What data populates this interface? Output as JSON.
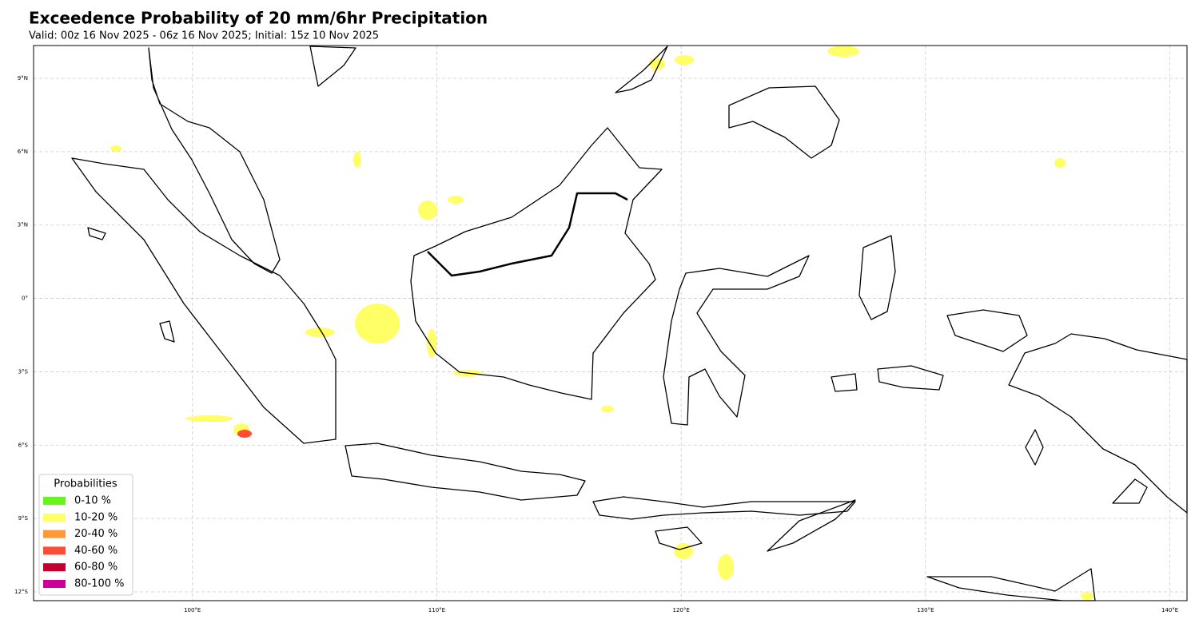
{
  "map": {
    "title": "Exceedence Probability of 20 mm/6hr Precipitation",
    "subtitle": "Valid: 00z 16 Nov 2025 - 06z 16 Nov 2025; Initial: 15z 10 Nov 2025",
    "xlim": [
      93.5,
      140.7
    ],
    "ylim": [
      -12.36,
      10.34
    ],
    "xticks": [
      {
        "value": 100,
        "label": "100°E"
      },
      {
        "value": 110,
        "label": "110°E"
      },
      {
        "value": 120,
        "label": "120°E"
      },
      {
        "value": 130,
        "label": "130°E"
      },
      {
        "value": 140,
        "label": "140°E"
      }
    ],
    "yticks": [
      {
        "value": 9,
        "label": "9°N"
      },
      {
        "value": 6,
        "label": "6°N"
      },
      {
        "value": 3,
        "label": "3°N"
      },
      {
        "value": 0,
        "label": "0°"
      },
      {
        "value": -3,
        "label": "3°S"
      },
      {
        "value": -6,
        "label": "6°S"
      },
      {
        "value": -9,
        "label": "9°S"
      },
      {
        "value": -12,
        "label": "12°S"
      }
    ],
    "grid": true,
    "legend": {
      "title": "Probabilities",
      "items": [
        {
          "label": "0-10 %",
          "color": "#66f51a"
        },
        {
          "label": "10-20 %",
          "color": "#ffff66"
        },
        {
          "label": "20-40 %",
          "color": "#ff9933"
        },
        {
          "label": "40-60 %",
          "color": "#ff4d33"
        },
        {
          "label": "60-80 %",
          "color": "#c4002e"
        },
        {
          "label": "80-100 %",
          "color": "#cc0099"
        }
      ]
    }
  }
}
